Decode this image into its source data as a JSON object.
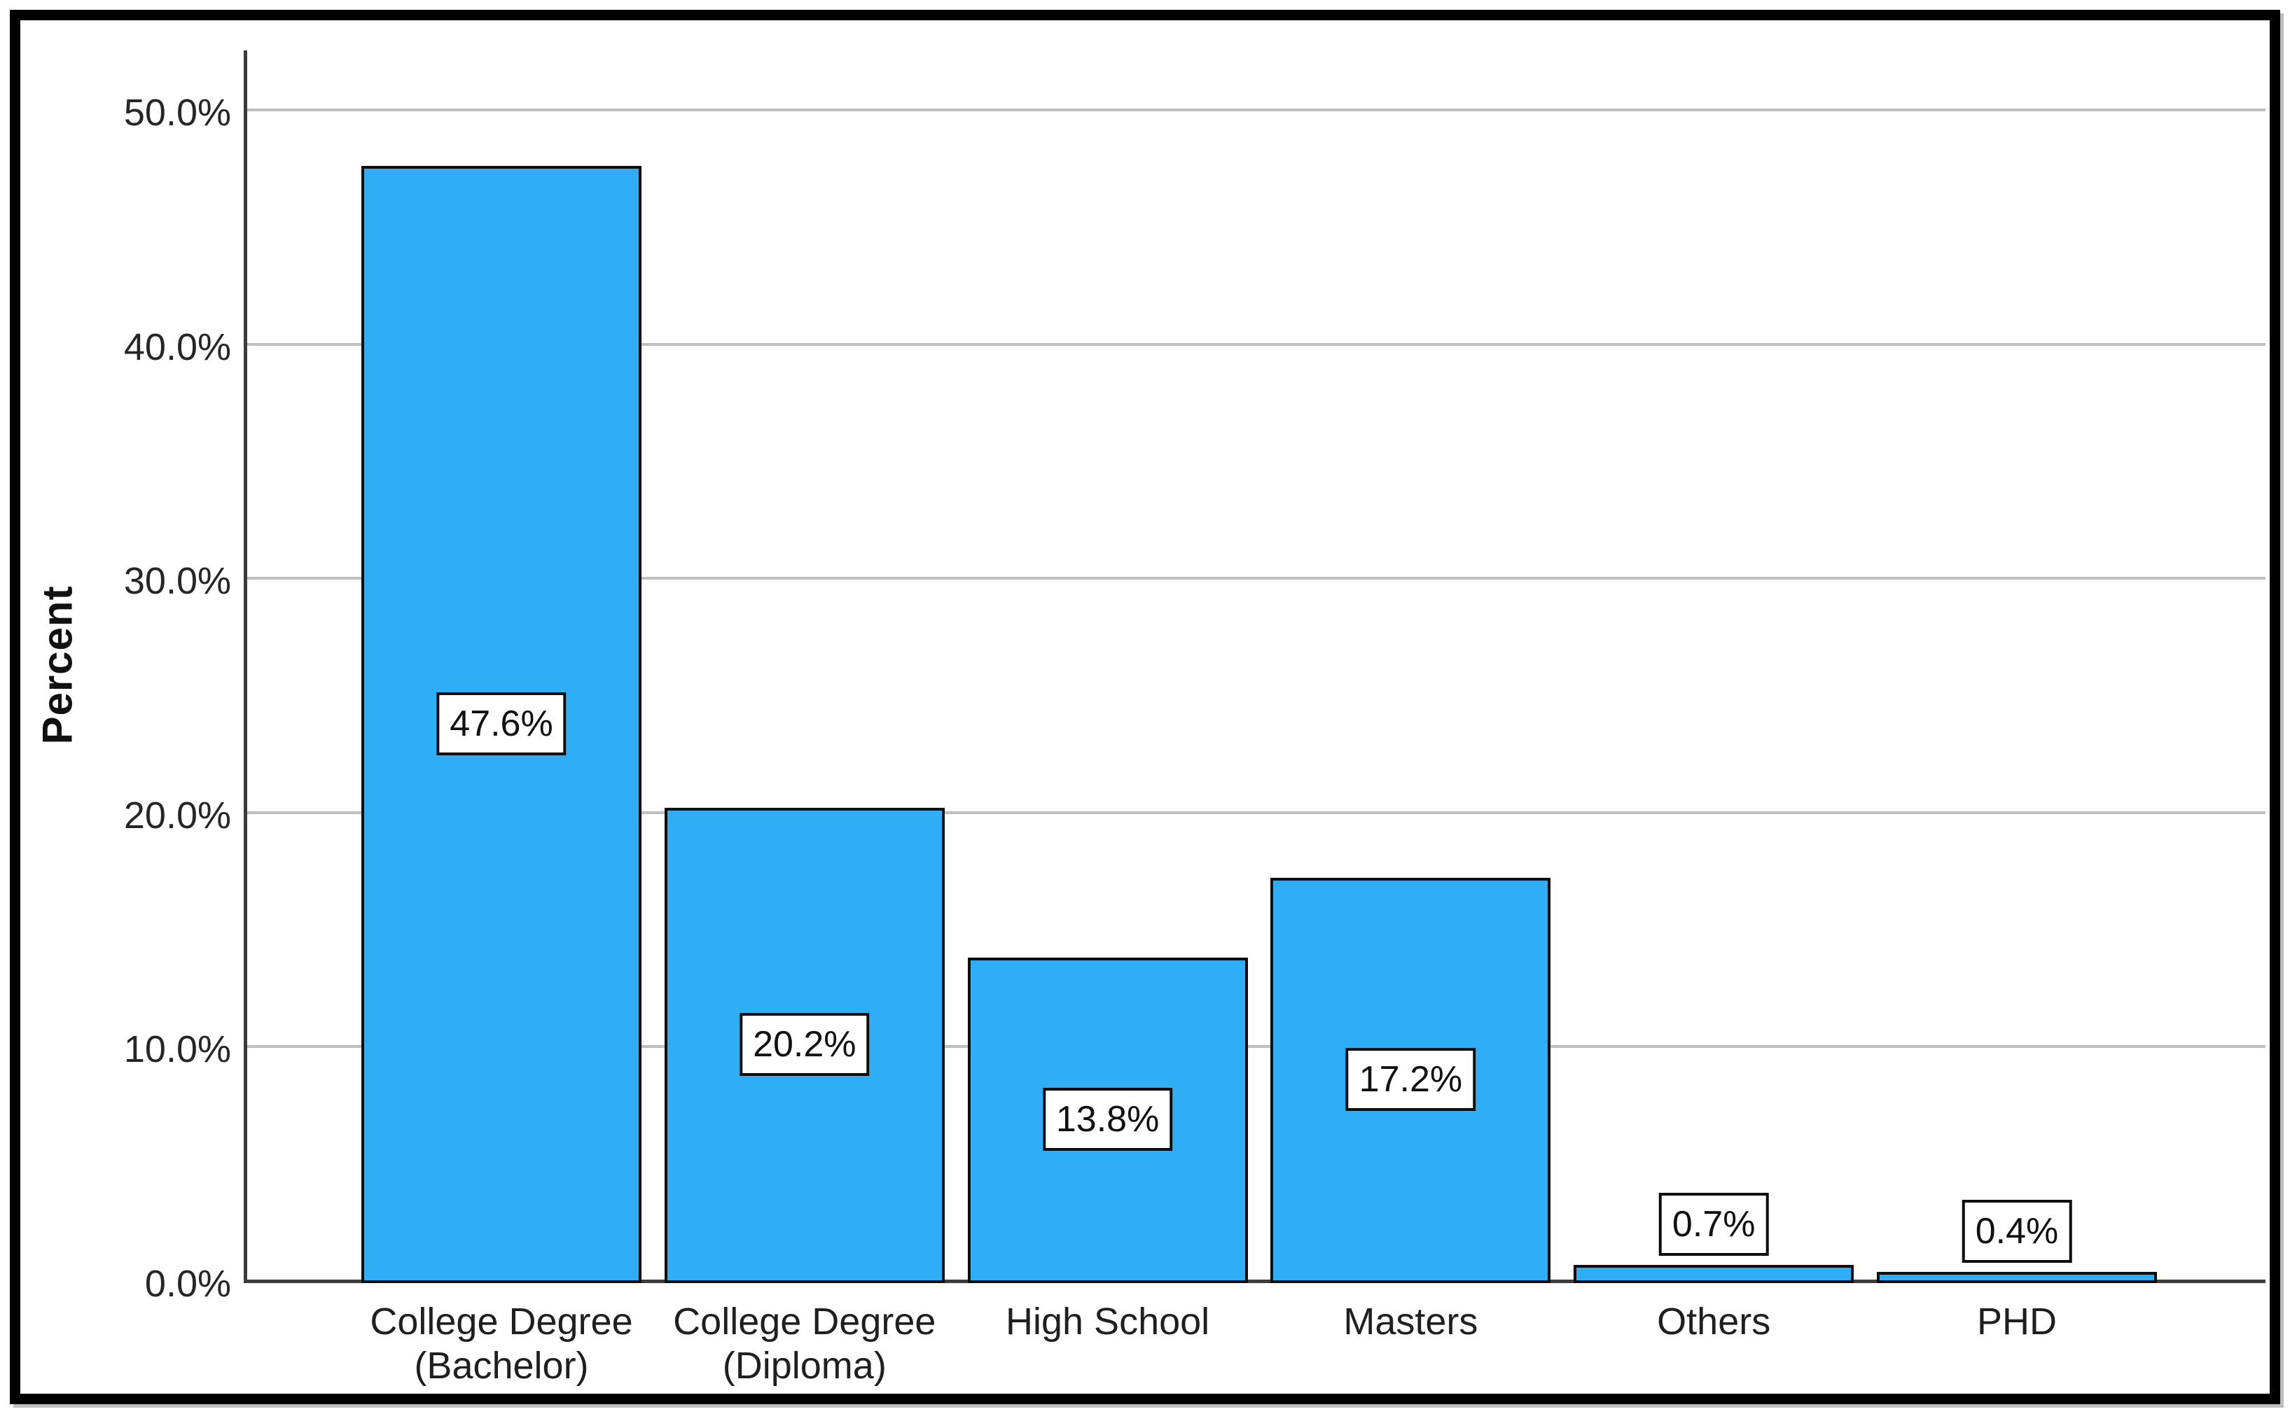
{
  "chart_data": {
    "type": "bar",
    "title": "",
    "xlabel": "",
    "ylabel": "Percent",
    "categories": [
      {
        "label": "College Degree (Bachelor)",
        "lines": [
          "College Degree",
          "(Bachelor)"
        ]
      },
      {
        "label": "College Degree (Diploma)",
        "lines": [
          "College Degree",
          "(Diploma)"
        ]
      },
      {
        "label": "High School",
        "lines": [
          "High School"
        ]
      },
      {
        "label": "Masters",
        "lines": [
          "Masters"
        ]
      },
      {
        "label": "Others",
        "lines": [
          "Others"
        ]
      },
      {
        "label": "PHD",
        "lines": [
          "PHD"
        ]
      }
    ],
    "values": [
      47.6,
      20.2,
      13.8,
      17.2,
      0.7,
      0.4
    ],
    "value_labels": [
      "47.6%",
      "20.2%",
      "13.8%",
      "17.2%",
      "0.7%",
      "0.4%"
    ],
    "y_ticks": [
      {
        "value": 0,
        "label": "0.0%"
      },
      {
        "value": 10,
        "label": "10.0%"
      },
      {
        "value": 20,
        "label": "20.0%"
      },
      {
        "value": 30,
        "label": "30.0%"
      },
      {
        "value": 40,
        "label": "40.0%"
      },
      {
        "value": 50,
        "label": "50.0%"
      }
    ],
    "ylim": [
      0,
      52.5
    ],
    "grid": "horizontal",
    "legend": "none"
  },
  "colors": {
    "background": "#ffffff",
    "frame_border": "#000000",
    "bar_fill": "#30aef5",
    "bar_border": "#0d0d0d",
    "gridline": "#bfbfbf",
    "axis_line": "#3c3c3c",
    "label_box_bg": "#ffffff",
    "label_box_border": "#0d0d0d",
    "text": "#262626"
  }
}
